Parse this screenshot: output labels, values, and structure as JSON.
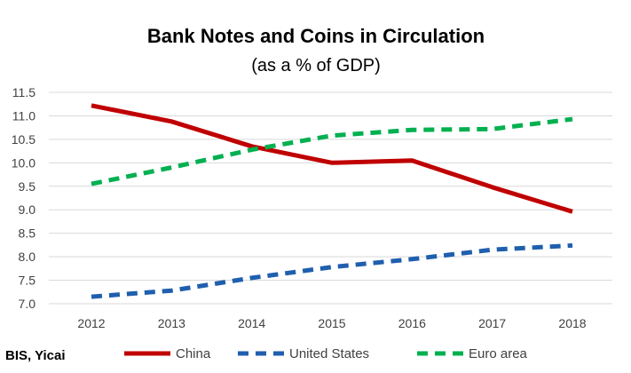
{
  "chart_data": {
    "type": "line",
    "title": "Bank Notes and Coins in Circulation",
    "subtitle": "(as a % of GDP)",
    "xlabel": "",
    "ylabel": "",
    "x": [
      "2012",
      "2013",
      "2014",
      "2015",
      "2016",
      "2017",
      "2018"
    ],
    "ylim": [
      7.0,
      11.5
    ],
    "yticks": [
      "7.0",
      "7.5",
      "8.0",
      "8.5",
      "9.0",
      "9.5",
      "10.0",
      "10.5",
      "11.0",
      "11.5"
    ],
    "grid": true,
    "legend_position": "bottom",
    "series": [
      {
        "name": "China",
        "values": [
          11.22,
          10.88,
          10.35,
          10.0,
          10.05,
          9.48,
          8.96
        ],
        "color": "#c00000",
        "style": "solid"
      },
      {
        "name": "United States",
        "values": [
          7.15,
          7.28,
          7.55,
          7.78,
          7.95,
          8.15,
          8.24
        ],
        "color": "#1f5fae",
        "style": "dashed"
      },
      {
        "name": "Euro area",
        "values": [
          9.55,
          9.9,
          10.28,
          10.58,
          10.7,
          10.72,
          10.93
        ],
        "color": "#00b050",
        "style": "dashed"
      }
    ],
    "source": "BIS, Yicai"
  }
}
